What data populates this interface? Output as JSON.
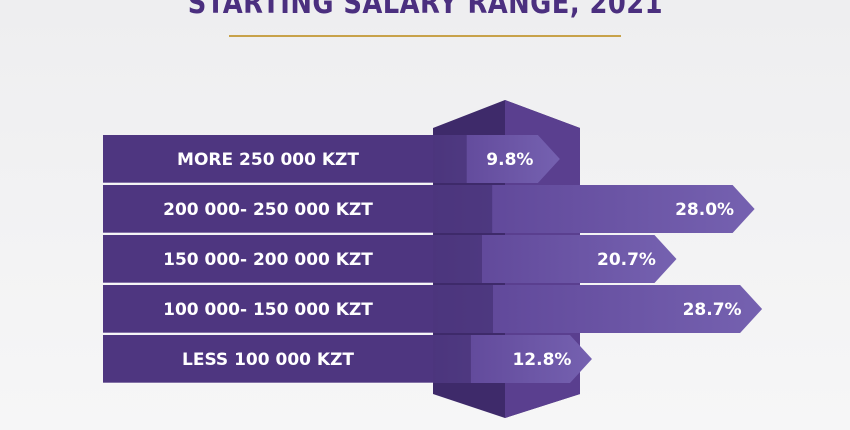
{
  "page": {
    "title": "STARTING SALARY RANGE, 2021"
  },
  "chart_data": {
    "type": "bar",
    "title": "STARTING SALARY RANGE, 2021",
    "categories": [
      "MORE 250 000 KZT",
      "200 000- 250 000 KZT",
      "150 000- 200 000 KZT",
      "100 000- 150 000 KZT",
      "LESS 100 000 KZT"
    ],
    "values": [
      9.8,
      28.0,
      20.7,
      28.7,
      12.8
    ],
    "value_labels": [
      "9.8%",
      "28.0%",
      "20.7%",
      "28.7%",
      "12.8%"
    ],
    "unit": "%",
    "colors": {
      "box": "#4e3680",
      "box_dark": "#3f2a6d",
      "prism_front": "#5a3f8f",
      "prism_side": "#3e2a6a",
      "arrow_start": "#5d4496",
      "arrow_end": "#7561b0",
      "title": "#4b2f7f",
      "rule": "#c8a24a"
    }
  }
}
